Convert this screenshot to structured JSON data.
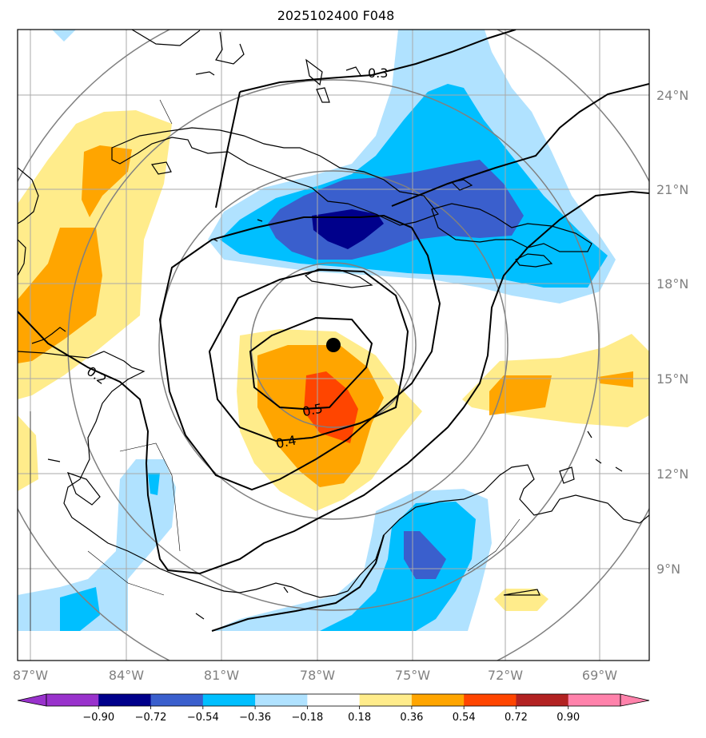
{
  "title": "2025102400 F048",
  "lon_labels": [
    "87°W",
    "84°W",
    "81°W",
    "78°W",
    "75°W",
    "72°W",
    "69°W"
  ],
  "lat_labels": [
    "24°N",
    "21°N",
    "18°N",
    "15°N",
    "12°N",
    "9°N"
  ],
  "contour_labels": [
    "0.3",
    "0.5",
    "0.4",
    "0.2"
  ],
  "colorbar": {
    "ticks": [
      "−0.90",
      "−0.72",
      "−0.54",
      "−0.36",
      "−0.18",
      "0.18",
      "0.36",
      "0.54",
      "0.72",
      "0.90"
    ],
    "colors": [
      "#9932cc",
      "#00008b",
      "#3a5fcd",
      "#00bfff",
      "#b0e2ff",
      "#ffffff",
      "#ffec8b",
      "#ffa500",
      "#ff4500",
      "#b22222",
      "#ff82ab"
    ]
  },
  "colors": {
    "gridline": "#a9a9a9",
    "range_ring": "#808080",
    "coast": "#000000"
  },
  "storm_center": {
    "lon": "77.6°W",
    "lat": "16.1°N"
  }
}
